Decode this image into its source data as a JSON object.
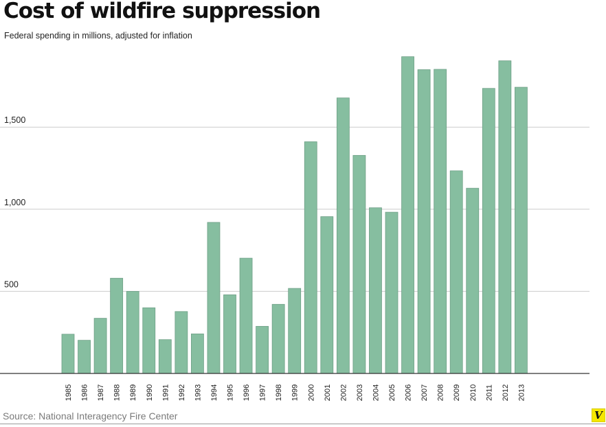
{
  "title": "Cost of wildfire suppression",
  "subtitle": "Federal spending in millions, adjusted for inflation",
  "source": "Source: National Interagency Fire Center",
  "logo_text": "V",
  "colors": {
    "bar": "#86bea0",
    "bar_stroke": "#6e9f86",
    "grid": "#cccccc",
    "axis": "#333333",
    "logo_bg": "#f5e800"
  },
  "chart_data": {
    "type": "bar",
    "title": "Cost of wildfire suppression",
    "subtitle": "Federal spending in millions, adjusted for inflation",
    "categories": [
      "1985",
      "1986",
      "1987",
      "1988",
      "1989",
      "1990",
      "1991",
      "1992",
      "1993",
      "1994",
      "1995",
      "1996",
      "1997",
      "1998",
      "1999",
      "2000",
      "2001",
      "2002",
      "2003",
      "2004",
      "2005",
      "2006",
      "2007",
      "2008",
      "2009",
      "2010",
      "2011",
      "2012",
      "2013"
    ],
    "values": [
      239,
      202,
      336,
      580,
      500,
      400,
      206,
      377,
      241,
      920,
      479,
      702,
      287,
      421,
      518,
      1411,
      955,
      1678,
      1328,
      1009,
      982,
      1929,
      1850,
      1852,
      1234,
      1128,
      1736,
      1904,
      1743
    ],
    "yticks": [
      500,
      1000,
      1500
    ],
    "ytick_labels": [
      "500",
      "1,000",
      "1,500"
    ],
    "ylim": [
      0,
      1950
    ],
    "xlabel": "",
    "ylabel": "",
    "grid": true,
    "legend": "none"
  }
}
